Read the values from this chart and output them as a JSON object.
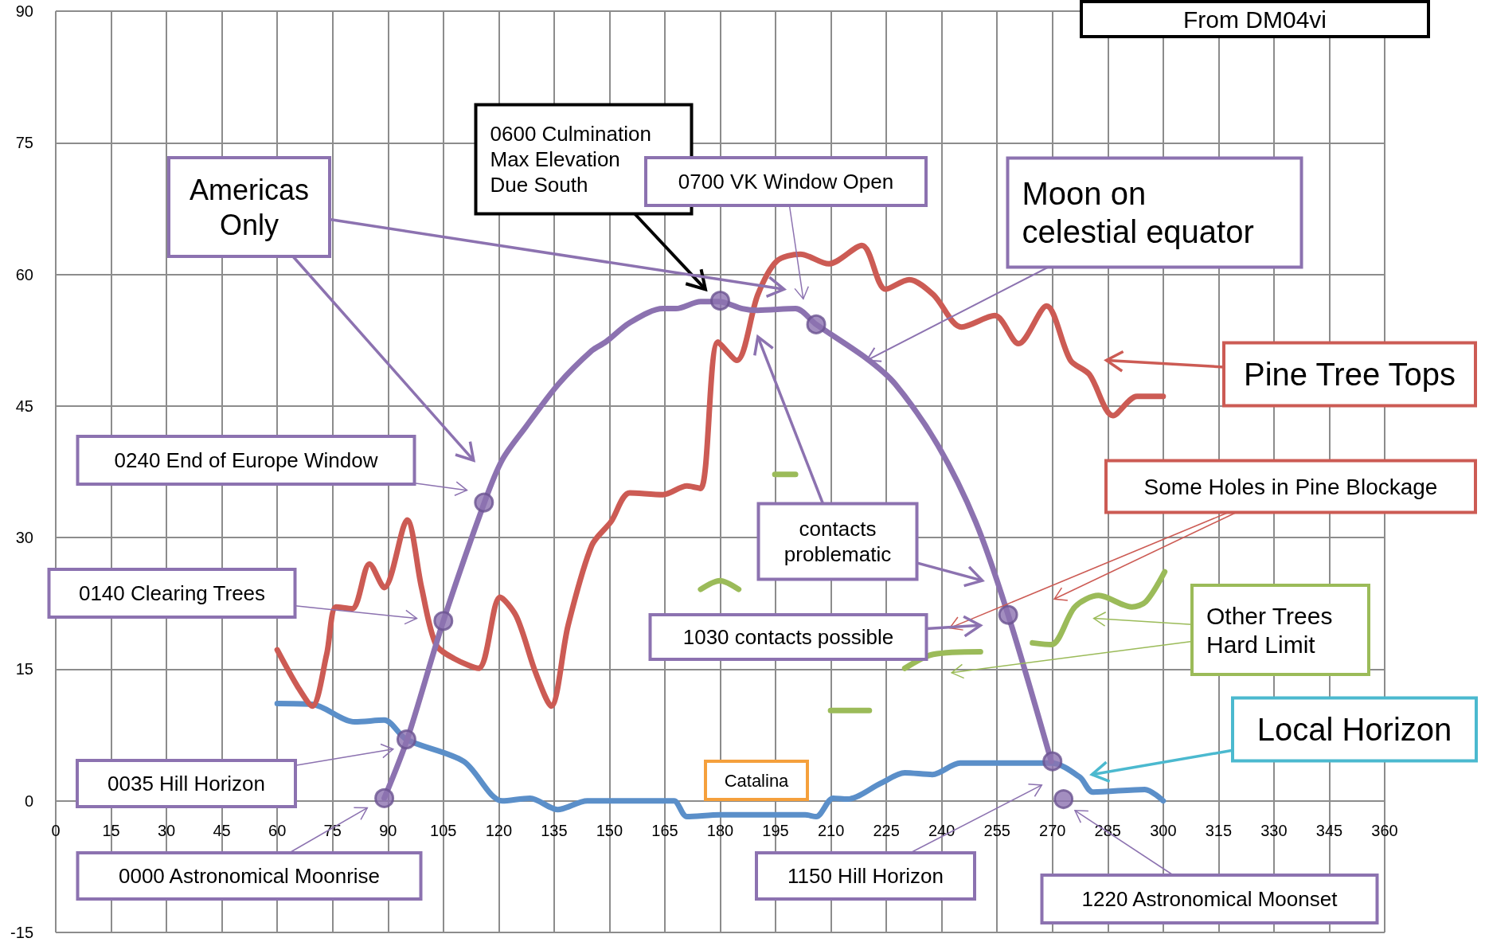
{
  "chart_data": {
    "type": "line",
    "title": "From DM04vi",
    "xlim": [
      0,
      360
    ],
    "xticks": [
      0,
      15,
      30,
      45,
      60,
      75,
      90,
      105,
      120,
      135,
      150,
      165,
      180,
      195,
      210,
      225,
      240,
      255,
      270,
      285,
      300,
      315,
      330,
      345,
      360
    ],
    "ylim": [
      -15,
      90
    ],
    "yticks": [
      -15,
      0,
      15,
      30,
      45,
      60,
      75,
      90
    ],
    "grid": true,
    "series": [
      {
        "color": "#5b8fc9",
        "x": [
          60,
          69.5,
          81,
          89,
          95,
          110.5,
          121,
          128.5,
          136,
          144,
          164.5,
          167.5,
          171,
          180,
          203,
          206,
          210.6,
          214.5,
          223.5,
          230,
          237.5,
          245,
          269.7,
          277.4,
          281,
          295,
          300
        ],
        "values": [
          11.1,
          11,
          9,
          9.2,
          7,
          4.5,
          0,
          0.3,
          -1,
          0,
          0,
          0,
          -1.8,
          -1.6,
          -1.6,
          -1.8,
          0.3,
          0.2,
          2,
          3.2,
          3,
          4.3,
          4.3,
          2.7,
          1,
          1.3,
          0
        ]
      },
      {
        "color": "#cc5b54",
        "x": [
          60,
          65.7,
          69.5,
          73.4,
          76,
          80.3,
          85,
          89,
          95.2,
          99.1,
          103,
          108,
          114.5,
          120.4,
          124.8,
          130,
          134.2,
          138.8,
          145.2,
          150.4,
          155.5,
          164.5,
          171,
          174.7,
          179.4,
          184.5,
          190.2,
          195.3,
          201.7,
          209.4,
          218.4,
          224.8,
          231.2,
          237.7,
          245.4,
          254.4,
          260.8,
          268.4,
          274.9,
          280,
          286.4,
          292.9,
          300
        ],
        "values": [
          17.2,
          12.9,
          10.8,
          16.7,
          22.1,
          21.9,
          27,
          24.3,
          32,
          24.3,
          17.8,
          16.2,
          15.1,
          23.2,
          21,
          14.6,
          10.8,
          20,
          29.1,
          31.8,
          35.1,
          34.9,
          35.9,
          35.6,
          52.3,
          50.2,
          57.7,
          61.5,
          62.3,
          61.2,
          63.3,
          58.3,
          59.4,
          57.7,
          54,
          55.3,
          52.1,
          56.4,
          50.2,
          48.6,
          43.9,
          46.1,
          46.1
        ]
      },
      {
        "color": "#9bbb59",
        "x": [
          174.7,
          179.9,
          185,
          190,
          194.8,
          200.4,
          205,
          209.9,
          220.4,
          225,
          230,
          237.7,
          250.5,
          258,
          264.6,
          269.7,
          276.1,
          282.5,
          291.5,
          295.3,
          300.4
        ],
        "values": [
          24.1,
          25.1,
          24.1,
          null,
          37.2,
          37.2,
          null,
          10.3,
          10.3,
          null,
          15.1,
          16.7,
          17,
          null,
          18,
          17.8,
          22.1,
          23.4,
          22.1,
          22.7,
          26.1
        ]
      },
      {
        "color": "#8c72b0",
        "x": [
          89,
          95.2,
          105,
          116.2,
          121,
          127.3,
          136.2,
          145.2,
          149,
          155.5,
          164.5,
          168,
          174.7,
          179.6,
          186,
          190,
          200.4,
          206,
          219.7,
          227.4,
          239,
          249.2,
          258,
          269.7
        ],
        "values": [
          0.3,
          7,
          20.5,
          34.1,
          38.9,
          42.6,
          47.5,
          51.3,
          52.3,
          54.5,
          56.1,
          56.1,
          56.9,
          56.9,
          56.1,
          55.9,
          56.1,
          54.3,
          50.4,
          47.5,
          40.5,
          31.8,
          21.2,
          4.5
        ]
      },
      {
        "type": "scatter",
        "marker": "circle",
        "color": "#8c72b0",
        "x": [
          89,
          95,
          105,
          116,
          180,
          206,
          258,
          270,
          273
        ],
        "values": [
          0.3,
          7,
          20.5,
          34,
          57,
          54.3,
          21.2,
          4.5,
          0.2
        ]
      }
    ],
    "annotations": [
      "0600 Culmination\nMax Elevation\nDue South",
      "0700 VK Window Open",
      "Americas\nOnly",
      {
        "text": "Moon on\ncelestial equator",
        "x": 219.7,
        "y": 50.2
      },
      "Pine Tree Tops",
      "0240 End of Europe Window",
      "contacts\nproblematic",
      "Some Holes in Pine Blockage",
      "0140 Clearing Trees",
      "1030 contacts possible",
      "Other Trees\nHard Limit",
      "Local Horizon",
      "Catalina",
      "0035 Hill Horizon",
      "0000 Astronomical Moonrise",
      "1150 Hill Horizon",
      "1220 Astronomical Moonset"
    ]
  }
}
